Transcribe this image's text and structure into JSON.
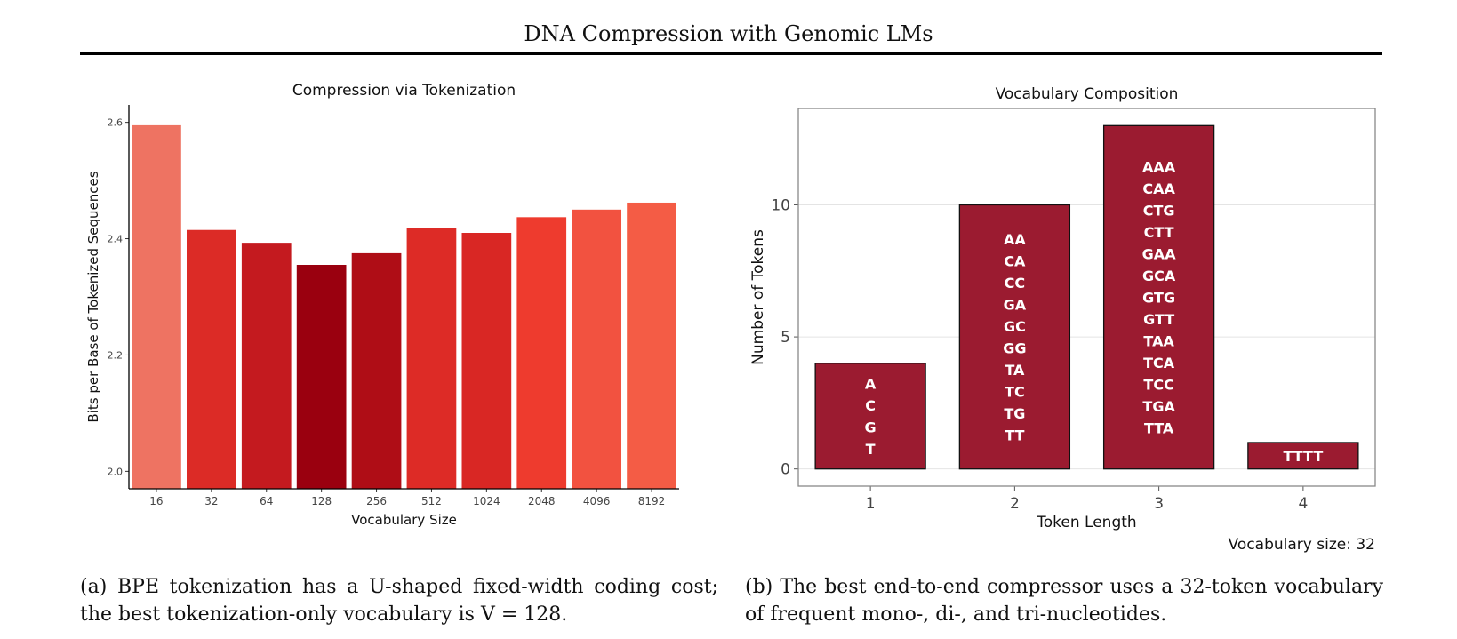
{
  "page": {
    "title": "DNA Compression with Genomic LMs"
  },
  "captions": {
    "a": {
      "label": "(a)",
      "text": "BPE tokenization has a U-shaped fixed-width coding cost; the best tokenization-only vocabulary is V = 128."
    },
    "b": {
      "label": "(b)",
      "text": "The best end-to-end compressor uses a 32-token vocabulary of frequent mono-, di-, and tri-nucleotides."
    }
  },
  "chart_data": [
    {
      "type": "bar",
      "title": "Compression via Tokenization",
      "xlabel": "Vocabulary Size",
      "ylabel": "Bits per Base of Tokenized Sequences",
      "categories": [
        "16",
        "32",
        "64",
        "128",
        "256",
        "512",
        "1024",
        "2048",
        "4096",
        "8192"
      ],
      "values": [
        2.595,
        2.415,
        2.393,
        2.355,
        2.375,
        2.418,
        2.41,
        2.437,
        2.45,
        2.462
      ],
      "colors": [
        "#ee7362",
        "#dc2b26",
        "#c41a1f",
        "#9a000f",
        "#af0d16",
        "#dd2b26",
        "#d92724",
        "#ee3b2e",
        "#f25240",
        "#f45c45"
      ],
      "ylim": [
        1.97,
        2.63
      ],
      "yticks": [
        2.0,
        2.2,
        2.4,
        2.6
      ],
      "ytick_labels": [
        "2.0",
        "2.2",
        "2.4",
        "2.6"
      ],
      "grid": false
    },
    {
      "type": "bar",
      "title": "Vocabulary Composition",
      "xlabel": "Token Length",
      "ylabel": "Number of Tokens",
      "categories": [
        "1",
        "2",
        "3",
        "4"
      ],
      "values": [
        4,
        10,
        13,
        1
      ],
      "bar_labels": [
        [
          "A",
          "C",
          "G",
          "T"
        ],
        [
          "AA",
          "CA",
          "CC",
          "GA",
          "GC",
          "GG",
          "TA",
          "TC",
          "TG",
          "TT"
        ],
        [
          "AAA",
          "CAA",
          "CTG",
          "CTT",
          "GAA",
          "GCA",
          "GTG",
          "GTT",
          "TAA",
          "TCA",
          "TCC",
          "TGA",
          "TTA"
        ],
        [
          "TTTT"
        ]
      ],
      "bar_color": "#9b1b30",
      "ylim": [
        -0.65,
        13.65
      ],
      "yticks": [
        0,
        5,
        10
      ],
      "ytick_labels": [
        "0",
        "5",
        "10"
      ],
      "grid": true,
      "annotation": "Vocabulary size: 32"
    }
  ]
}
